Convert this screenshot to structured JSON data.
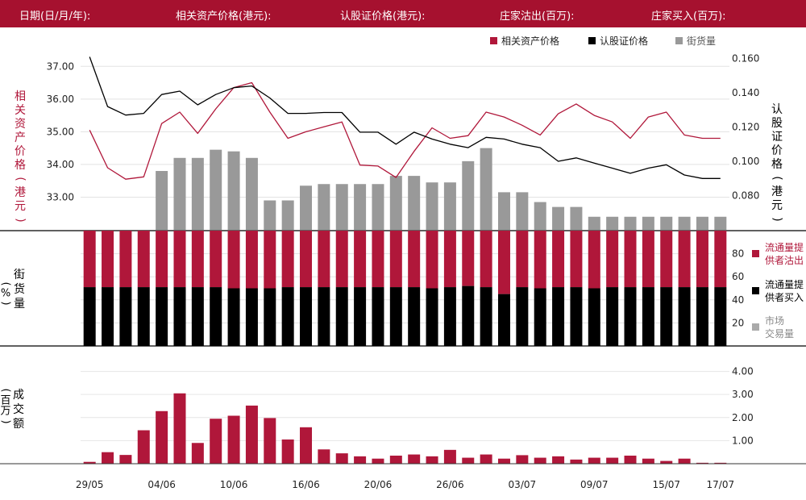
{
  "header": {
    "labels": [
      "日期(日/月/年):",
      "相关资产价格(港元):",
      "认股证价格(港元):",
      "庄家沽出(百万):",
      "庄家买入(百万):"
    ]
  },
  "colors": {
    "header_bg": "#a6112f",
    "underlying": "#b0173a",
    "warrant": "#000000",
    "street": "#999999",
    "mm_sell": "#b0173a",
    "mm_buy": "#000000",
    "market": "#aaaaaa",
    "turnover": "#b0173a"
  },
  "chart_data": [
    {
      "type": "line",
      "panel": "price",
      "categories": [
        "29/05",
        "30/05",
        "01/06",
        "02/06",
        "04/06",
        "05/06",
        "08/06",
        "09/06",
        "10/06",
        "11/06",
        "12/06",
        "15/06",
        "16/06",
        "17/06",
        "18/06",
        "19/06",
        "20/06",
        "22/06",
        "23/06",
        "24/06",
        "26/06",
        "27/06",
        "29/06",
        "30/06",
        "03/07",
        "04/07",
        "06/07",
        "07/07",
        "08/07",
        "09/07",
        "10/07",
        "13/07",
        "14/07",
        "15/07",
        "16/07",
        "17/07"
      ],
      "tick_labels": [
        {
          "index": 0,
          "label": "29/05"
        },
        {
          "index": 4,
          "label": "04/06"
        },
        {
          "index": 8,
          "label": "10/06"
        },
        {
          "index": 12,
          "label": "16/06"
        },
        {
          "index": 16,
          "label": "20/06"
        },
        {
          "index": 20,
          "label": "26/06"
        },
        {
          "index": 24,
          "label": "03/07"
        },
        {
          "index": 28,
          "label": "09/07"
        },
        {
          "index": 32,
          "label": "15/07"
        },
        {
          "index": 35,
          "label": "17/07"
        }
      ],
      "legend": [
        "相关资产价格",
        "认股证价格",
        "街货量"
      ],
      "left_axis_label": "相关资产价格(港元)",
      "right_axis_label": "认股证价格(港元)",
      "left_ylim": [
        32.0,
        37.5
      ],
      "left_ticks": [
        "33.00",
        "34.00",
        "35.00",
        "36.00",
        "37.00"
      ],
      "right_ylim": [
        0.06,
        0.165
      ],
      "right_ticks": [
        "0.080",
        "0.100",
        "0.120",
        "0.140",
        "0.160"
      ],
      "series": [
        {
          "name": "相关资产价格",
          "axis": "left",
          "values": [
            35.05,
            33.9,
            33.55,
            33.62,
            35.25,
            35.6,
            34.95,
            35.7,
            36.35,
            36.5,
            35.6,
            34.8,
            35.0,
            35.15,
            35.3,
            33.98,
            33.95,
            33.6,
            34.4,
            35.12,
            34.8,
            34.88,
            35.6,
            35.45,
            35.2,
            34.9,
            35.55,
            35.85,
            35.5,
            35.3,
            34.8,
            35.45,
            35.6,
            34.9,
            34.8,
            34.8
          ]
        },
        {
          "name": "认股证价格",
          "axis": "right",
          "values": [
            0.161,
            0.132,
            0.127,
            0.128,
            0.139,
            0.141,
            0.133,
            0.139,
            0.143,
            0.144,
            0.137,
            0.128,
            0.128,
            0.1285,
            0.1285,
            0.117,
            0.117,
            0.11,
            0.117,
            0.113,
            0.11,
            0.108,
            0.114,
            0.113,
            0.11,
            0.108,
            0.1,
            0.102,
            0.099,
            0.096,
            0.093,
            0.096,
            0.098,
            0.092,
            0.09,
            0.09
          ]
        }
      ]
    },
    {
      "type": "bar",
      "panel": "street",
      "name": "街货量",
      "values": [
        null,
        null,
        null,
        null,
        33.8,
        34.2,
        34.2,
        34.45,
        34.4,
        34.2,
        32.9,
        32.9,
        33.35,
        33.4,
        33.4,
        33.4,
        33.4,
        33.65,
        33.65,
        33.45,
        33.45,
        34.1,
        34.5,
        33.15,
        33.15,
        32.85,
        32.7,
        32.7,
        32.4,
        32.4,
        32.4,
        32.4,
        32.4,
        32.4,
        32.4,
        32.4
      ]
    },
    {
      "type": "bar",
      "panel": "ratio",
      "y_axis_label": "街货量(%)",
      "ylim": [
        0,
        100
      ],
      "ticks": [
        "20",
        "40",
        "60",
        "80"
      ],
      "legend": [
        "流通量提供者沽出",
        "流通量提供者买入",
        "市场交易量"
      ],
      "series": [
        {
          "name": "流通量提供者沽出",
          "values": [
            49,
            49,
            49,
            49,
            49,
            49,
            49,
            49,
            50,
            50,
            50,
            49,
            49,
            49,
            49,
            49,
            49,
            49,
            49,
            50,
            49,
            48,
            49,
            55,
            49,
            50,
            49,
            49,
            50,
            49,
            49,
            49,
            49,
            49,
            49,
            49
          ]
        },
        {
          "name": "流通量提供者买入",
          "values": [
            51,
            51,
            51,
            51,
            51,
            51,
            51,
            51,
            50,
            50,
            50,
            51,
            51,
            51,
            51,
            51,
            51,
            51,
            51,
            50,
            51,
            52,
            51,
            45,
            51,
            50,
            51,
            51,
            50,
            51,
            51,
            51,
            51,
            51,
            51,
            51
          ]
        }
      ]
    },
    {
      "type": "bar",
      "panel": "turnover",
      "y_axis_label": "成交额(百万)",
      "ylim": [
        0,
        4.3
      ],
      "ticks": [
        "1.00",
        "2.00",
        "3.00",
        "4.00"
      ],
      "values": [
        0.08,
        0.5,
        0.38,
        1.45,
        2.28,
        3.05,
        0.9,
        1.95,
        2.08,
        2.52,
        1.98,
        1.05,
        1.58,
        0.62,
        0.45,
        0.32,
        0.22,
        0.35,
        0.4,
        0.32,
        0.6,
        0.26,
        0.4,
        0.22,
        0.37,
        0.26,
        0.32,
        0.18,
        0.26,
        0.26,
        0.35,
        0.22,
        0.12,
        0.22,
        0.04,
        0.04
      ]
    }
  ]
}
